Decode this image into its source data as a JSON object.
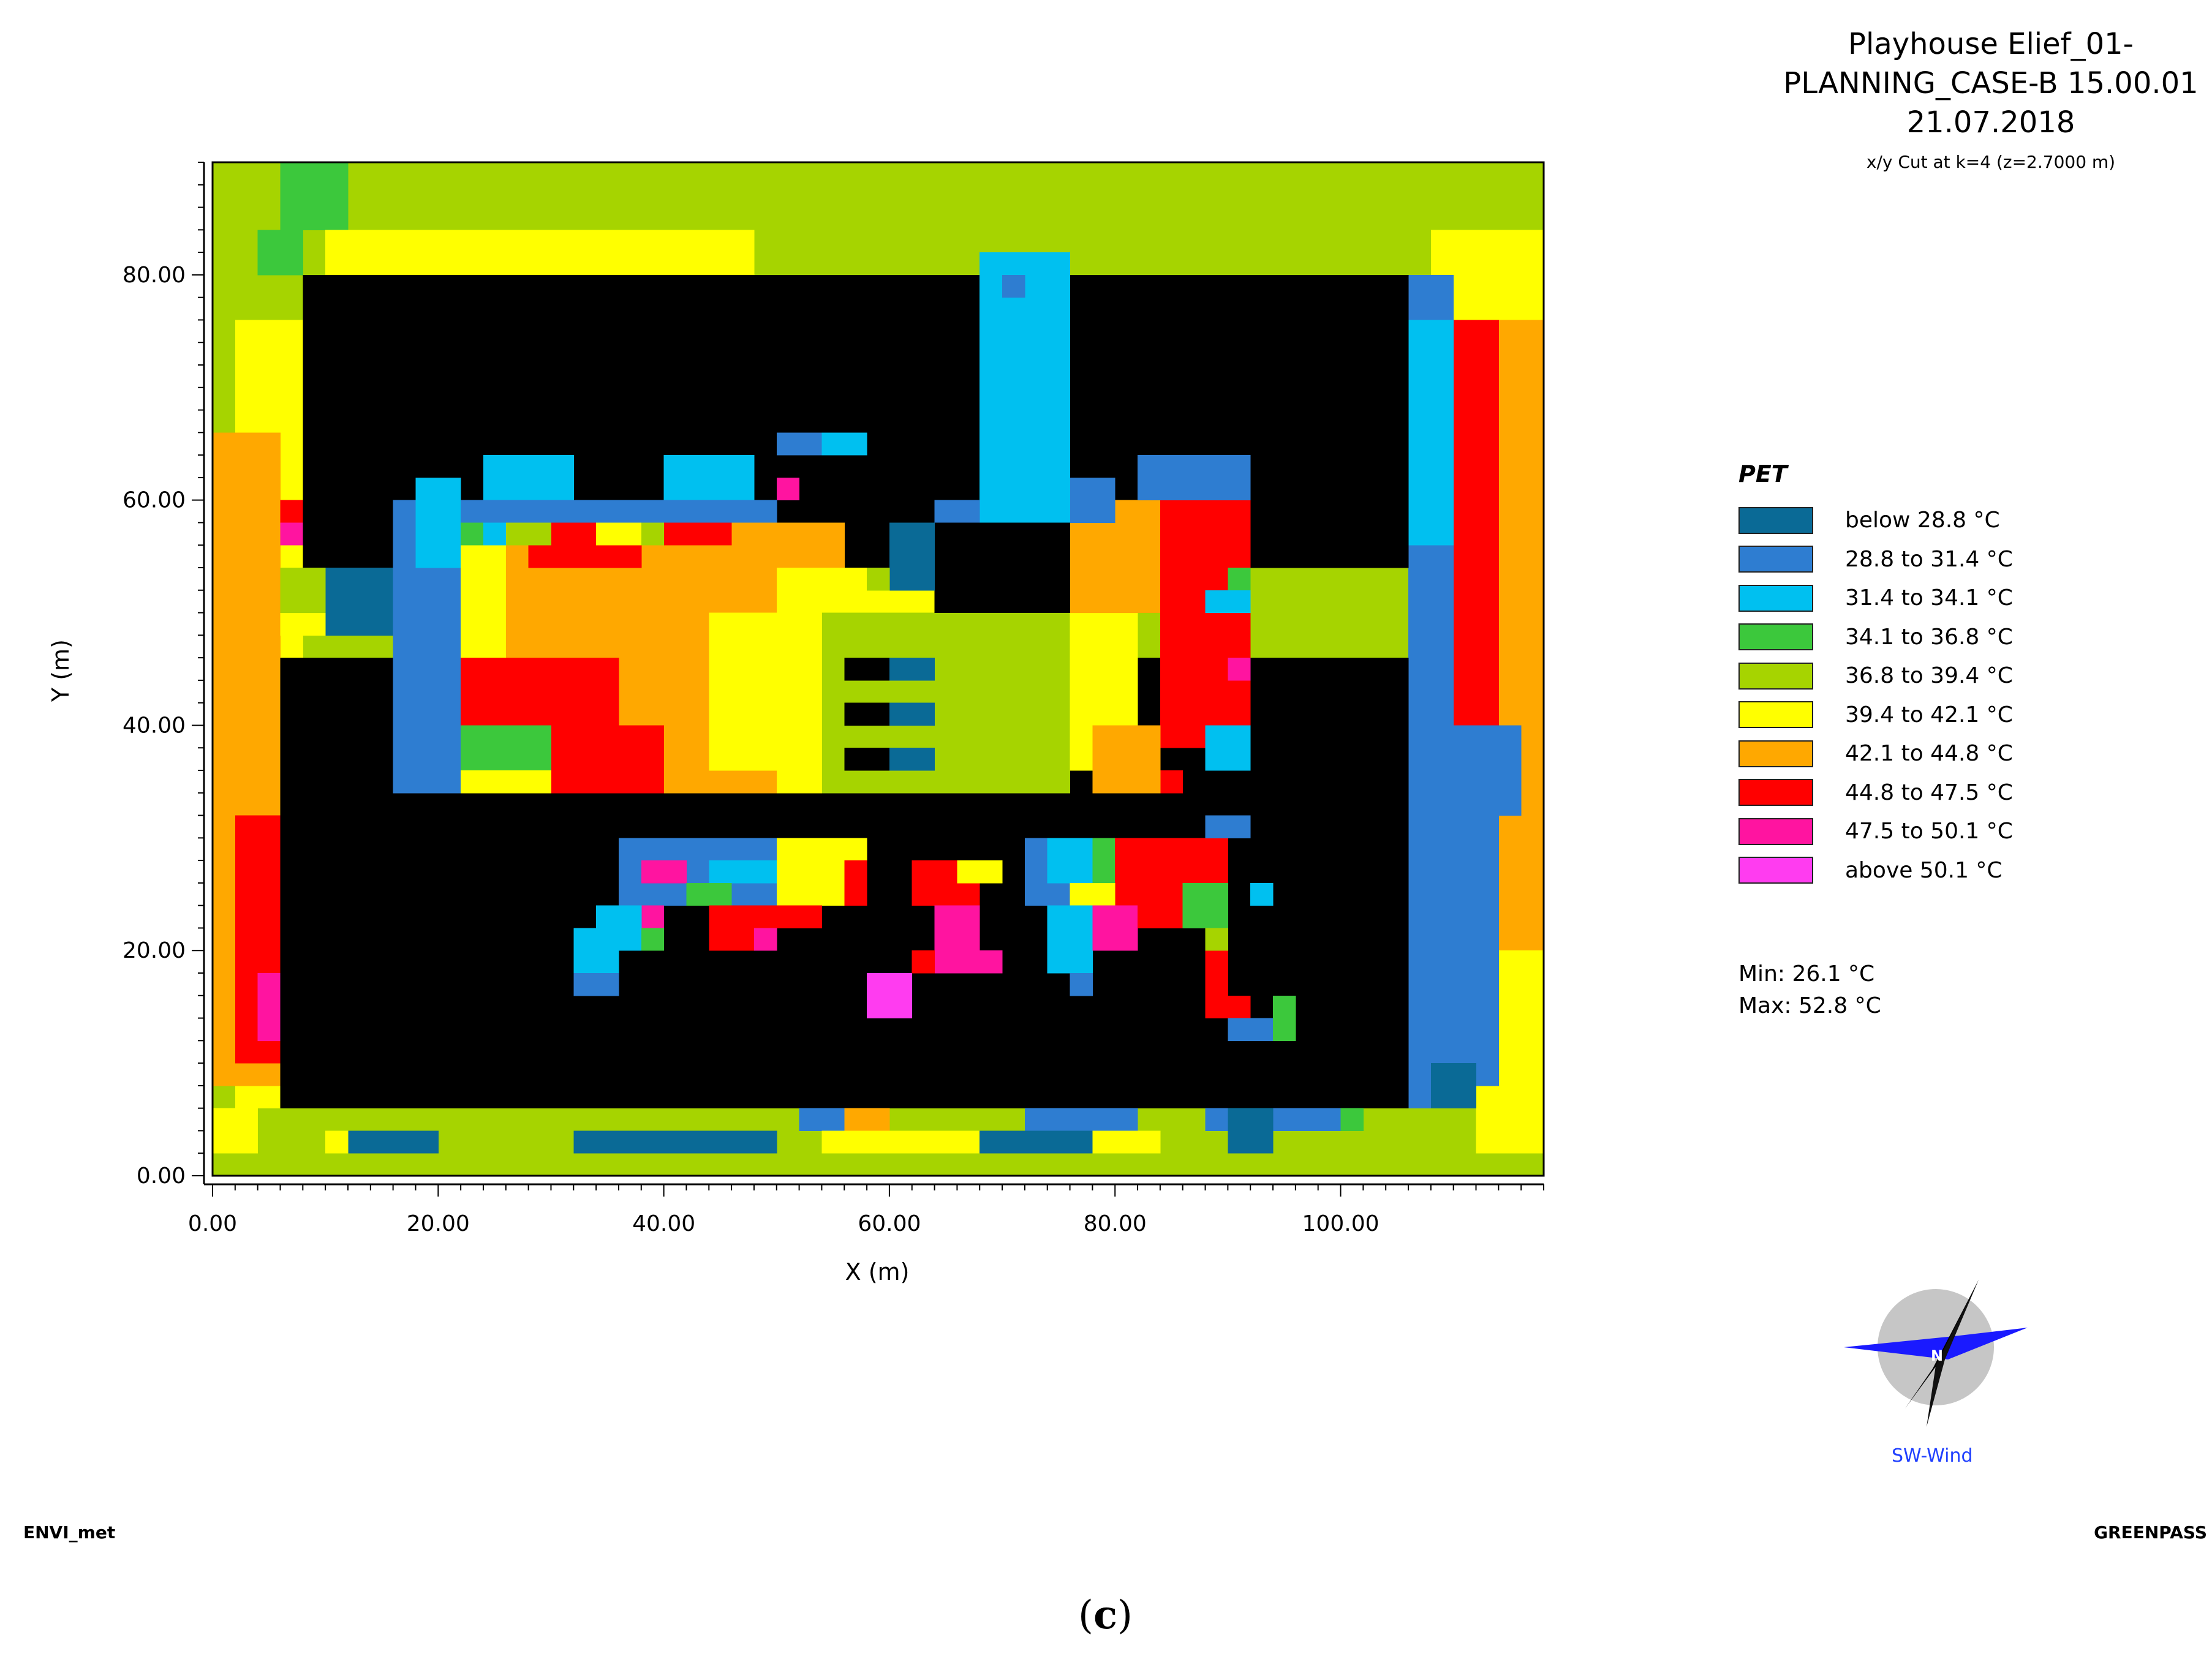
{
  "header": {
    "title_line1": "Playhouse Elief_01-",
    "title_line2": "PLANNING_CASE-B 15.00.01",
    "title_line3": "21.07.2018",
    "cut_text": "x/y Cut at k=4 (z=2.7000 m)"
  },
  "legend": {
    "title": "PET",
    "entries": [
      {
        "key": "c0",
        "label": "below 28.8 °C",
        "color": "#0a6a96"
      },
      {
        "key": "c1",
        "label": "28.8 to 31.4 °C",
        "color": "#2e7dd1"
      },
      {
        "key": "c2",
        "label": "31.4 to 34.1 °C",
        "color": "#00c0f0"
      },
      {
        "key": "c3",
        "label": "34.1 to 36.8 °C",
        "color": "#3cc83c"
      },
      {
        "key": "c4",
        "label": "36.8 to 39.4 °C",
        "color": "#a6d400"
      },
      {
        "key": "c5",
        "label": "39.4 to 42.1 °C",
        "color": "#ffff00"
      },
      {
        "key": "c6",
        "label": "42.1 to 44.8 °C",
        "color": "#ffa800"
      },
      {
        "key": "c7",
        "label": "44.8 to 47.5 °C",
        "color": "#ff0000"
      },
      {
        "key": "c8",
        "label": "47.5 to 50.1 °C",
        "color": "#ff14a0"
      },
      {
        "key": "c9",
        "label": "above 50.1 °C",
        "color": "#ff3cf0"
      }
    ],
    "building_color": "#000000"
  },
  "stats": {
    "min": "Min: 26.1 °C",
    "max": "Max: 52.8 °C"
  },
  "footer": {
    "left": "ENVI_met",
    "right": "GREENPASS",
    "panel_label": "c"
  },
  "compass": {
    "label": "SW-Wind",
    "north": "N"
  },
  "chart_data": {
    "type": "heatmap",
    "xlabel": "X (m)",
    "ylabel": "Y (m)",
    "xlim": [
      0,
      118
    ],
    "ylim": [
      0,
      90
    ],
    "xticks": [
      "0.00",
      "20.00",
      "40.00",
      "60.00",
      "80.00",
      "100.00"
    ],
    "yticks": [
      "0.00",
      "20.00",
      "40.00",
      "60.00",
      "80.00"
    ],
    "xtick_values": [
      0,
      20,
      40,
      60,
      80,
      100
    ],
    "ytick_values": [
      0,
      20,
      40,
      60,
      80
    ],
    "cell_size_m": 2,
    "background_class": "c4",
    "regions": [
      {
        "c": "c5",
        "x": [
          2,
          8
        ],
        "y": [
          6,
          76
        ]
      },
      {
        "c": "c6",
        "x": [
          0,
          6
        ],
        "y": [
          8,
          66
        ]
      },
      {
        "c": "c7",
        "x": [
          2,
          6
        ],
        "y": [
          10,
          32
        ]
      },
      {
        "c": "c8",
        "x": [
          4,
          6
        ],
        "y": [
          12,
          18
        ]
      },
      {
        "c": "c7",
        "x": [
          6,
          8
        ],
        "y": [
          56,
          60
        ]
      },
      {
        "c": "c8",
        "x": [
          6,
          8
        ],
        "y": [
          56,
          58
        ]
      },
      {
        "c": "c3",
        "x": [
          6,
          12
        ],
        "y": [
          84,
          90
        ]
      },
      {
        "c": "c3",
        "x": [
          4,
          8
        ],
        "y": [
          80,
          84
        ]
      },
      {
        "c": "c5",
        "x": [
          10,
          48
        ],
        "y": [
          80,
          84
        ]
      },
      {
        "c": "c5",
        "x": [
          68,
          74
        ],
        "y": [
          80,
          82
        ]
      },
      {
        "c": "c5",
        "x": [
          108,
          118
        ],
        "y": [
          76,
          84
        ]
      },
      {
        "c": "c6",
        "x": [
          110,
          118
        ],
        "y": [
          10,
          76
        ]
      },
      {
        "c": "c7",
        "x": [
          110,
          114
        ],
        "y": [
          38,
          76
        ]
      },
      {
        "c": "c5",
        "x": [
          112,
          118
        ],
        "y": [
          2,
          20
        ]
      },
      {
        "c": "c1",
        "x": [
          106,
          110
        ],
        "y": [
          6,
          80
        ]
      },
      {
        "c": "c2",
        "x": [
          106,
          110
        ],
        "y": [
          56,
          76
        ]
      },
      {
        "c": "c1",
        "x": [
          110,
          116
        ],
        "y": [
          32,
          40
        ]
      },
      {
        "c": "c1",
        "x": [
          110,
          114
        ],
        "y": [
          8,
          32
        ]
      },
      {
        "c": "c0",
        "x": [
          108,
          112
        ],
        "y": [
          6,
          10
        ]
      },
      {
        "c": "b",
        "x": [
          8,
          106
        ],
        "y": [
          54,
          80
        ]
      },
      {
        "c": "b",
        "x": [
          6,
          106
        ],
        "y": [
          6,
          46
        ]
      },
      {
        "c": "c0",
        "x": [
          10,
          22
        ],
        "y": [
          48,
          54
        ]
      },
      {
        "c": "c5",
        "x": [
          6,
          10
        ],
        "y": [
          48,
          52
        ]
      },
      {
        "c": "c4",
        "x": [
          6,
          10
        ],
        "y": [
          50,
          54
        ]
      },
      {
        "c": "c1",
        "x": [
          16,
          22
        ],
        "y": [
          34,
          60
        ]
      },
      {
        "c": "c2",
        "x": [
          18,
          22
        ],
        "y": [
          54,
          62
        ]
      },
      {
        "c": "c2",
        "x": [
          24,
          32
        ],
        "y": [
          60,
          64
        ]
      },
      {
        "c": "c2",
        "x": [
          40,
          48
        ],
        "y": [
          60,
          64
        ]
      },
      {
        "c": "c1",
        "x": [
          50,
          56
        ],
        "y": [
          64,
          66
        ]
      },
      {
        "c": "c2",
        "x": [
          54,
          58
        ],
        "y": [
          64,
          66
        ]
      },
      {
        "c": "c1",
        "x": [
          22,
          50
        ],
        "y": [
          58,
          60
        ]
      },
      {
        "c": "c8",
        "x": [
          50,
          52
        ],
        "y": [
          60,
          62
        ]
      },
      {
        "c": "c5",
        "x": [
          22,
          28
        ],
        "y": [
          46,
          56
        ]
      },
      {
        "c": "c6",
        "x": [
          26,
          56
        ],
        "y": [
          34,
          58
        ]
      },
      {
        "c": "c5",
        "x": [
          44,
          56
        ],
        "y": [
          36,
          50
        ]
      },
      {
        "c": "c5",
        "x": [
          50,
          64
        ],
        "y": [
          50,
          54
        ]
      },
      {
        "c": "c7",
        "x": [
          22,
          36
        ],
        "y": [
          38,
          46
        ]
      },
      {
        "c": "c7",
        "x": [
          30,
          40
        ],
        "y": [
          34,
          40
        ]
      },
      {
        "c": "c3",
        "x": [
          22,
          30
        ],
        "y": [
          36,
          40
        ]
      },
      {
        "c": "c5",
        "x": [
          22,
          30
        ],
        "y": [
          34,
          36
        ]
      },
      {
        "c": "c7",
        "x": [
          28,
          38
        ],
        "y": [
          54,
          58
        ]
      },
      {
        "c": "c7",
        "x": [
          40,
          46
        ],
        "y": [
          56,
          58
        ]
      },
      {
        "c": "c3",
        "x": [
          22,
          26
        ],
        "y": [
          56,
          58
        ]
      },
      {
        "c": "c2",
        "x": [
          24,
          26
        ],
        "y": [
          56,
          58
        ]
      },
      {
        "c": "c4",
        "x": [
          26,
          30
        ],
        "y": [
          56,
          58
        ]
      },
      {
        "c": "c5",
        "x": [
          34,
          38
        ],
        "y": [
          56,
          58
        ]
      },
      {
        "c": "c4",
        "x": [
          38,
          40
        ],
        "y": [
          56,
          58
        ]
      },
      {
        "c": "c4",
        "x": [
          50,
          76
        ],
        "y": [
          34,
          50
        ]
      },
      {
        "c": "c5",
        "x": [
          50,
          54
        ],
        "y": [
          34,
          50
        ]
      },
      {
        "c": "b",
        "x": [
          56,
          60
        ],
        "y": [
          44,
          46
        ]
      },
      {
        "c": "b",
        "x": [
          56,
          60
        ],
        "y": [
          40,
          42
        ]
      },
      {
        "c": "b",
        "x": [
          56,
          60
        ],
        "y": [
          36,
          38
        ]
      },
      {
        "c": "c0",
        "x": [
          60,
          64
        ],
        "y": [
          44,
          46
        ]
      },
      {
        "c": "c0",
        "x": [
          60,
          64
        ],
        "y": [
          40,
          42
        ]
      },
      {
        "c": "c0",
        "x": [
          60,
          64
        ],
        "y": [
          36,
          38
        ]
      },
      {
        "c": "c5",
        "x": [
          76,
          82
        ],
        "y": [
          36,
          50
        ]
      },
      {
        "c": "c6",
        "x": [
          76,
          84
        ],
        "y": [
          50,
          60
        ]
      },
      {
        "c": "c7",
        "x": [
          84,
          92
        ],
        "y": [
          38,
          60
        ]
      },
      {
        "c": "c8",
        "x": [
          90,
          92
        ],
        "y": [
          44,
          46
        ]
      },
      {
        "c": "c3",
        "x": [
          90,
          92
        ],
        "y": [
          52,
          54
        ]
      },
      {
        "c": "c2",
        "x": [
          88,
          92
        ],
        "y": [
          50,
          52
        ]
      },
      {
        "c": "c1",
        "x": [
          82,
          92
        ],
        "y": [
          60,
          64
        ]
      },
      {
        "c": "c1",
        "x": [
          76,
          80
        ],
        "y": [
          58,
          62
        ]
      },
      {
        "c": "c2",
        "x": [
          68,
          76
        ],
        "y": [
          58,
          82
        ]
      },
      {
        "c": "c1",
        "x": [
          70,
          72
        ],
        "y": [
          78,
          80
        ]
      },
      {
        "c": "c1",
        "x": [
          64,
          68
        ],
        "y": [
          58,
          60
        ]
      },
      {
        "c": "b",
        "x": [
          64,
          76
        ],
        "y": [
          50,
          58
        ]
      },
      {
        "c": "c0",
        "x": [
          60,
          64
        ],
        "y": [
          52,
          58
        ]
      },
      {
        "c": "c4",
        "x": [
          58,
          60
        ],
        "y": [
          52,
          54
        ]
      },
      {
        "c": "c2",
        "x": [
          88,
          92
        ],
        "y": [
          36,
          40
        ]
      },
      {
        "c": "c7",
        "x": [
          82,
          86
        ],
        "y": [
          34,
          36
        ]
      },
      {
        "c": "c6",
        "x": [
          78,
          84
        ],
        "y": [
          34,
          40
        ]
      },
      {
        "c": "c1",
        "x": [
          36,
          54
        ],
        "y": [
          24,
          30
        ]
      },
      {
        "c": "c2",
        "x": [
          44,
          54
        ],
        "y": [
          26,
          28
        ]
      },
      {
        "c": "c8",
        "x": [
          38,
          42
        ],
        "y": [
          26,
          28
        ]
      },
      {
        "c": "c3",
        "x": [
          42,
          46
        ],
        "y": [
          24,
          26
        ]
      },
      {
        "c": "c5",
        "x": [
          50,
          58
        ],
        "y": [
          24,
          30
        ]
      },
      {
        "c": "c7",
        "x": [
          56,
          58
        ],
        "y": [
          24,
          28
        ]
      },
      {
        "c": "c7",
        "x": [
          44,
          54
        ],
        "y": [
          22,
          24
        ]
      },
      {
        "c": "c8",
        "x": [
          38,
          40
        ],
        "y": [
          22,
          24
        ]
      },
      {
        "c": "c7",
        "x": [
          44,
          48
        ],
        "y": [
          20,
          22
        ]
      },
      {
        "c": "c8",
        "x": [
          48,
          50
        ],
        "y": [
          20,
          22
        ]
      },
      {
        "c": "c2",
        "x": [
          34,
          38
        ],
        "y": [
          20,
          24
        ]
      },
      {
        "c": "c3",
        "x": [
          38,
          40
        ],
        "y": [
          20,
          22
        ]
      },
      {
        "c": "c2",
        "x": [
          32,
          36
        ],
        "y": [
          18,
          22
        ]
      },
      {
        "c": "c1",
        "x": [
          32,
          34
        ],
        "y": [
          16,
          18
        ]
      },
      {
        "c": "c1",
        "x": [
          34,
          36
        ],
        "y": [
          16,
          18
        ]
      },
      {
        "c": "c7",
        "x": [
          62,
          68
        ],
        "y": [
          24,
          28
        ]
      },
      {
        "c": "c5",
        "x": [
          66,
          70
        ],
        "y": [
          26,
          28
        ]
      },
      {
        "c": "c8",
        "x": [
          64,
          68
        ],
        "y": [
          18,
          24
        ]
      },
      {
        "c": "c7",
        "x": [
          62,
          64
        ],
        "y": [
          18,
          20
        ]
      },
      {
        "c": "c8",
        "x": [
          68,
          70
        ],
        "y": [
          18,
          20
        ]
      },
      {
        "c": "c9",
        "x": [
          58,
          62
        ],
        "y": [
          14,
          18
        ]
      },
      {
        "c": "c1",
        "x": [
          72,
          80
        ],
        "y": [
          24,
          30
        ]
      },
      {
        "c": "c2",
        "x": [
          74,
          80
        ],
        "y": [
          26,
          30
        ]
      },
      {
        "c": "c3",
        "x": [
          78,
          80
        ],
        "y": [
          26,
          30
        ]
      },
      {
        "c": "c7",
        "x": [
          80,
          90
        ],
        "y": [
          24,
          30
        ]
      },
      {
        "c": "c5",
        "x": [
          76,
          80
        ],
        "y": [
          24,
          26
        ]
      },
      {
        "c": "c2",
        "x": [
          74,
          78
        ],
        "y": [
          18,
          24
        ]
      },
      {
        "c": "c8",
        "x": [
          78,
          82
        ],
        "y": [
          20,
          24
        ]
      },
      {
        "c": "c7",
        "x": [
          82,
          86
        ],
        "y": [
          22,
          24
        ]
      },
      {
        "c": "c3",
        "x": [
          86,
          90
        ],
        "y": [
          22,
          26
        ]
      },
      {
        "c": "c1",
        "x": [
          88,
          92
        ],
        "y": [
          30,
          32
        ]
      },
      {
        "c": "c2",
        "x": [
          92,
          94
        ],
        "y": [
          24,
          26
        ]
      },
      {
        "c": "c7",
        "x": [
          88,
          90
        ],
        "y": [
          14,
          20
        ]
      },
      {
        "c": "c7",
        "x": [
          88,
          92
        ],
        "y": [
          14,
          16
        ]
      },
      {
        "c": "c1",
        "x": [
          90,
          94
        ],
        "y": [
          12,
          14
        ]
      },
      {
        "c": "c3",
        "x": [
          94,
          96
        ],
        "y": [
          12,
          16
        ]
      },
      {
        "c": "c1",
        "x": [
          76,
          78
        ],
        "y": [
          16,
          18
        ]
      },
      {
        "c": "c4",
        "x": [
          88,
          90
        ],
        "y": [
          20,
          22
        ]
      },
      {
        "c": "c1",
        "x": [
          52,
          56
        ],
        "y": [
          4,
          6
        ]
      },
      {
        "c": "c6",
        "x": [
          56,
          60
        ],
        "y": [
          4,
          6
        ]
      },
      {
        "c": "c1",
        "x": [
          72,
          82
        ],
        "y": [
          4,
          6
        ]
      },
      {
        "c": "c1",
        "x": [
          88,
          100
        ],
        "y": [
          4,
          6
        ]
      },
      {
        "c": "c3",
        "x": [
          100,
          102
        ],
        "y": [
          4,
          6
        ]
      },
      {
        "c": "c0",
        "x": [
          12,
          20
        ],
        "y": [
          2,
          4
        ]
      },
      {
        "c": "c5",
        "x": [
          10,
          12
        ],
        "y": [
          2,
          4
        ]
      },
      {
        "c": "c0",
        "x": [
          32,
          50
        ],
        "y": [
          2,
          4
        ]
      },
      {
        "c": "c5",
        "x": [
          54,
          68
        ],
        "y": [
          2,
          4
        ]
      },
      {
        "c": "c0",
        "x": [
          68,
          78
        ],
        "y": [
          2,
          4
        ]
      },
      {
        "c": "c5",
        "x": [
          78,
          84
        ],
        "y": [
          2,
          4
        ]
      },
      {
        "c": "c0",
        "x": [
          90,
          94
        ],
        "y": [
          2,
          6
        ]
      },
      {
        "c": "c5",
        "x": [
          0,
          4
        ],
        "y": [
          2,
          6
        ]
      }
    ]
  }
}
